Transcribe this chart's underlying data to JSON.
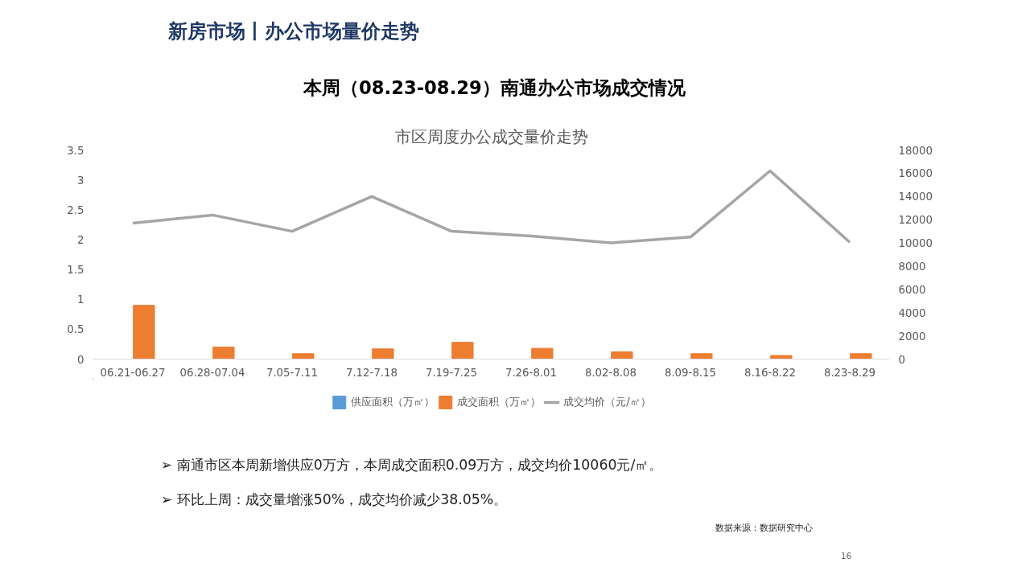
{
  "chart_data": {
    "type": "bar",
    "title": "市区周度办公成交量价走势",
    "subtitle": "本周（08.23-08.29）南通办公市场成交情况",
    "categories": [
      "06.21-06.27",
      "06.28-07.04",
      "7.05-7.11",
      "7.12-7.18",
      "7.19-7.25",
      "7.26-8.01",
      "8.02-8.08",
      "8.09-8.15",
      "8.16-8.22",
      "8.23-8.29"
    ],
    "series": [
      {
        "name": "供应面积（万㎡）",
        "color": "#5b9bd5",
        "type": "bar",
        "values": [
          0,
          0,
          0,
          0,
          0,
          0,
          0,
          0,
          0,
          0
        ]
      },
      {
        "name": "成交面积（万㎡）",
        "color": "#ed7d31",
        "type": "bar",
        "values": [
          0.9,
          0.2,
          0.09,
          0.17,
          0.28,
          0.18,
          0.12,
          0.09,
          0.06,
          0.09
        ]
      },
      {
        "name": "成交均价（元/㎡）",
        "color": "#a5a5a5",
        "type": "line",
        "axis": "y2",
        "values": [
          11700,
          12400,
          11000,
          14000,
          11000,
          10600,
          10000,
          10500,
          16200,
          10060
        ]
      }
    ],
    "ylim": [
      0,
      3.5
    ],
    "yticks": [
      0,
      0.5,
      1,
      1.5,
      2,
      2.5,
      3,
      3.5
    ],
    "y2lim": [
      0,
      18000
    ],
    "y2ticks": [
      0,
      2000,
      4000,
      6000,
      8000,
      10000,
      12000,
      14000,
      16000,
      18000
    ],
    "grid": false,
    "legend": "bottom",
    "marker": "none",
    "annotations": [
      "新房市场丨办公市场量价走势",
      "➢ 南通市区本周新增供应0万方，本周成交面积0.09万方，成交均价10060元/㎡。",
      "➢ 环比上周：成交量增涨50%，成交均价减少38.05%。",
      "数据来源：数据研究中心",
      "16"
    ]
  }
}
